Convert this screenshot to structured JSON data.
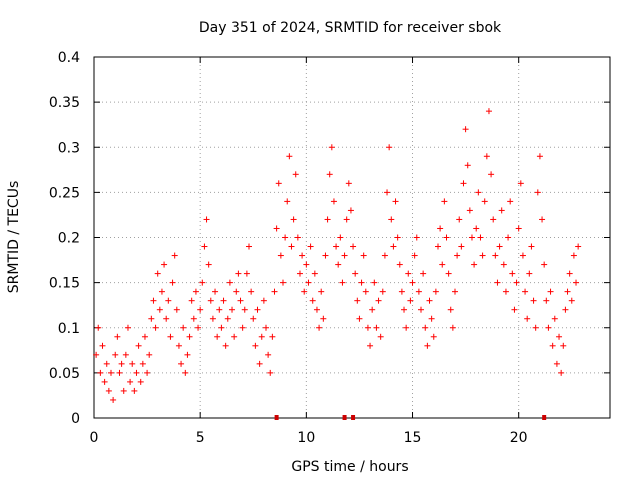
{
  "chart_data": {
    "type": "scatter",
    "title": "Day 351 of 2024, SRMTID for receiver sbok",
    "xlabel": "GPS time / hours",
    "ylabel": "SRMTID / TECUs",
    "xlim": [
      0,
      24.3
    ],
    "ylim": [
      0,
      0.4
    ],
    "grid": true,
    "marker": "+",
    "color": "#ff0000",
    "x_ticks": [
      {
        "value": 0,
        "label": "0"
      },
      {
        "value": 5,
        "label": "5"
      },
      {
        "value": 10,
        "label": "10"
      },
      {
        "value": 15,
        "label": "15"
      },
      {
        "value": 20,
        "label": "20"
      }
    ],
    "y_ticks": [
      {
        "value": 0,
        "label": "0"
      },
      {
        "value": 0.05,
        "label": "0.05"
      },
      {
        "value": 0.1,
        "label": "0.1"
      },
      {
        "value": 0.15,
        "label": "0.15"
      },
      {
        "value": 0.2,
        "label": "0.2"
      },
      {
        "value": 0.25,
        "label": "0.25"
      },
      {
        "value": 0.3,
        "label": "0.3"
      },
      {
        "value": 0.35,
        "label": "0.35"
      },
      {
        "value": 0.4,
        "label": "0.4"
      }
    ],
    "series": [
      {
        "name": "SRMTID",
        "points": [
          [
            0.1,
            0.07
          ],
          [
            0.2,
            0.1
          ],
          [
            0.3,
            0.05
          ],
          [
            0.4,
            0.08
          ],
          [
            0.5,
            0.04
          ],
          [
            0.6,
            0.06
          ],
          [
            0.7,
            0.03
          ],
          [
            0.8,
            0.05
          ],
          [
            0.9,
            0.02
          ],
          [
            1.0,
            0.07
          ],
          [
            1.1,
            0.09
          ],
          [
            1.2,
            0.05
          ],
          [
            1.3,
            0.06
          ],
          [
            1.4,
            0.03
          ],
          [
            1.5,
            0.07
          ],
          [
            1.6,
            0.1
          ],
          [
            1.7,
            0.04
          ],
          [
            1.8,
            0.06
          ],
          [
            1.9,
            0.03
          ],
          [
            2.0,
            0.05
          ],
          [
            2.1,
            0.08
          ],
          [
            2.2,
            0.04
          ],
          [
            2.3,
            0.06
          ],
          [
            2.4,
            0.09
          ],
          [
            2.5,
            0.05
          ],
          [
            2.6,
            0.07
          ],
          [
            2.7,
            0.11
          ],
          [
            2.8,
            0.13
          ],
          [
            2.9,
            0.1
          ],
          [
            3.0,
            0.16
          ],
          [
            3.1,
            0.12
          ],
          [
            3.2,
            0.14
          ],
          [
            3.3,
            0.17
          ],
          [
            3.4,
            0.11
          ],
          [
            3.5,
            0.13
          ],
          [
            3.6,
            0.09
          ],
          [
            3.7,
            0.15
          ],
          [
            3.8,
            0.18
          ],
          [
            3.9,
            0.12
          ],
          [
            4.0,
            0.08
          ],
          [
            4.1,
            0.06
          ],
          [
            4.2,
            0.1
          ],
          [
            4.3,
            0.05
          ],
          [
            4.4,
            0.07
          ],
          [
            4.5,
            0.09
          ],
          [
            4.6,
            0.13
          ],
          [
            4.7,
            0.11
          ],
          [
            4.8,
            0.14
          ],
          [
            4.9,
            0.1
          ],
          [
            5.0,
            0.12
          ],
          [
            5.1,
            0.15
          ],
          [
            5.2,
            0.19
          ],
          [
            5.3,
            0.22
          ],
          [
            5.4,
            0.17
          ],
          [
            5.5,
            0.13
          ],
          [
            5.6,
            0.11
          ],
          [
            5.7,
            0.14
          ],
          [
            5.8,
            0.09
          ],
          [
            5.9,
            0.12
          ],
          [
            6.0,
            0.1
          ],
          [
            6.1,
            0.13
          ],
          [
            6.2,
            0.08
          ],
          [
            6.3,
            0.11
          ],
          [
            6.4,
            0.15
          ],
          [
            6.5,
            0.12
          ],
          [
            6.6,
            0.09
          ],
          [
            6.7,
            0.14
          ],
          [
            6.8,
            0.16
          ],
          [
            6.9,
            0.13
          ],
          [
            7.0,
            0.1
          ],
          [
            7.1,
            0.12
          ],
          [
            7.2,
            0.16
          ],
          [
            7.3,
            0.19
          ],
          [
            7.4,
            0.14
          ],
          [
            7.5,
            0.11
          ],
          [
            7.6,
            0.08
          ],
          [
            7.7,
            0.12
          ],
          [
            7.8,
            0.06
          ],
          [
            7.9,
            0.09
          ],
          [
            8.0,
            0.13
          ],
          [
            8.1,
            0.1
          ],
          [
            8.2,
            0.07
          ],
          [
            8.3,
            0.05
          ],
          [
            8.4,
            0.09
          ],
          [
            8.5,
            0.14
          ],
          [
            8.6,
            0.21
          ],
          [
            8.7,
            0.26
          ],
          [
            8.8,
            0.18
          ],
          [
            8.9,
            0.15
          ],
          [
            9.0,
            0.2
          ],
          [
            9.1,
            0.24
          ],
          [
            9.2,
            0.29
          ],
          [
            9.3,
            0.19
          ],
          [
            9.4,
            0.22
          ],
          [
            9.5,
            0.27
          ],
          [
            9.6,
            0.2
          ],
          [
            9.7,
            0.16
          ],
          [
            9.8,
            0.18
          ],
          [
            9.9,
            0.14
          ],
          [
            10.0,
            0.17
          ],
          [
            10.1,
            0.15
          ],
          [
            10.2,
            0.19
          ],
          [
            10.3,
            0.13
          ],
          [
            10.4,
            0.16
          ],
          [
            10.5,
            0.12
          ],
          [
            10.6,
            0.1
          ],
          [
            10.7,
            0.14
          ],
          [
            10.8,
            0.11
          ],
          [
            10.9,
            0.18
          ],
          [
            11.0,
            0.22
          ],
          [
            11.1,
            0.27
          ],
          [
            11.2,
            0.3
          ],
          [
            11.3,
            0.24
          ],
          [
            11.4,
            0.19
          ],
          [
            11.5,
            0.17
          ],
          [
            11.6,
            0.2
          ],
          [
            11.7,
            0.15
          ],
          [
            11.8,
            0.18
          ],
          [
            11.9,
            0.22
          ],
          [
            12.0,
            0.26
          ],
          [
            12.1,
            0.23
          ],
          [
            12.2,
            0.19
          ],
          [
            12.3,
            0.16
          ],
          [
            12.4,
            0.13
          ],
          [
            12.5,
            0.11
          ],
          [
            12.6,
            0.15
          ],
          [
            12.7,
            0.18
          ],
          [
            12.8,
            0.14
          ],
          [
            12.9,
            0.1
          ],
          [
            13.0,
            0.08
          ],
          [
            13.1,
            0.12
          ],
          [
            13.2,
            0.15
          ],
          [
            13.3,
            0.1
          ],
          [
            13.4,
            0.13
          ],
          [
            13.5,
            0.09
          ],
          [
            13.6,
            0.14
          ],
          [
            13.7,
            0.18
          ],
          [
            13.8,
            0.25
          ],
          [
            13.9,
            0.3
          ],
          [
            14.0,
            0.22
          ],
          [
            14.1,
            0.19
          ],
          [
            14.2,
            0.24
          ],
          [
            14.3,
            0.2
          ],
          [
            14.4,
            0.17
          ],
          [
            14.5,
            0.14
          ],
          [
            14.6,
            0.12
          ],
          [
            14.7,
            0.1
          ],
          [
            14.8,
            0.16
          ],
          [
            14.9,
            0.13
          ],
          [
            15.0,
            0.15
          ],
          [
            15.1,
            0.18
          ],
          [
            15.2,
            0.2
          ],
          [
            15.3,
            0.14
          ],
          [
            15.4,
            0.12
          ],
          [
            15.5,
            0.16
          ],
          [
            15.6,
            0.1
          ],
          [
            15.7,
            0.08
          ],
          [
            15.8,
            0.13
          ],
          [
            15.9,
            0.11
          ],
          [
            16.0,
            0.09
          ],
          [
            16.1,
            0.14
          ],
          [
            16.2,
            0.19
          ],
          [
            16.3,
            0.21
          ],
          [
            16.4,
            0.17
          ],
          [
            16.5,
            0.24
          ],
          [
            16.6,
            0.2
          ],
          [
            16.7,
            0.16
          ],
          [
            16.8,
            0.12
          ],
          [
            16.9,
            0.1
          ],
          [
            17.0,
            0.14
          ],
          [
            17.1,
            0.18
          ],
          [
            17.2,
            0.22
          ],
          [
            17.3,
            0.19
          ],
          [
            17.4,
            0.26
          ],
          [
            17.5,
            0.32
          ],
          [
            17.6,
            0.28
          ],
          [
            17.7,
            0.23
          ],
          [
            17.8,
            0.2
          ],
          [
            17.9,
            0.17
          ],
          [
            18.0,
            0.21
          ],
          [
            18.1,
            0.25
          ],
          [
            18.2,
            0.2
          ],
          [
            18.3,
            0.18
          ],
          [
            18.4,
            0.24
          ],
          [
            18.5,
            0.29
          ],
          [
            18.6,
            0.34
          ],
          [
            18.7,
            0.27
          ],
          [
            18.8,
            0.22
          ],
          [
            18.9,
            0.18
          ],
          [
            19.0,
            0.15
          ],
          [
            19.1,
            0.19
          ],
          [
            19.2,
            0.23
          ],
          [
            19.3,
            0.17
          ],
          [
            19.4,
            0.14
          ],
          [
            19.5,
            0.2
          ],
          [
            19.6,
            0.24
          ],
          [
            19.7,
            0.16
          ],
          [
            19.8,
            0.12
          ],
          [
            19.9,
            0.15
          ],
          [
            20.0,
            0.21
          ],
          [
            20.1,
            0.26
          ],
          [
            20.2,
            0.18
          ],
          [
            20.3,
            0.14
          ],
          [
            20.4,
            0.11
          ],
          [
            20.5,
            0.16
          ],
          [
            20.6,
            0.19
          ],
          [
            20.7,
            0.13
          ],
          [
            20.8,
            0.1
          ],
          [
            20.9,
            0.25
          ],
          [
            21.0,
            0.29
          ],
          [
            21.1,
            0.22
          ],
          [
            21.2,
            0.17
          ],
          [
            21.3,
            0.13
          ],
          [
            21.4,
            0.1
          ],
          [
            21.5,
            0.14
          ],
          [
            21.6,
            0.08
          ],
          [
            21.7,
            0.11
          ],
          [
            21.8,
            0.06
          ],
          [
            21.9,
            0.09
          ],
          [
            22.0,
            0.05
          ],
          [
            22.1,
            0.08
          ],
          [
            22.2,
            0.12
          ],
          [
            22.3,
            0.14
          ],
          [
            22.4,
            0.16
          ],
          [
            22.5,
            0.13
          ],
          [
            22.6,
            0.18
          ],
          [
            22.7,
            0.15
          ],
          [
            22.8,
            0.19
          ]
        ]
      }
    ],
    "zero_marks_x": [
      8.6,
      11.8,
      12.2,
      21.2
    ]
  }
}
